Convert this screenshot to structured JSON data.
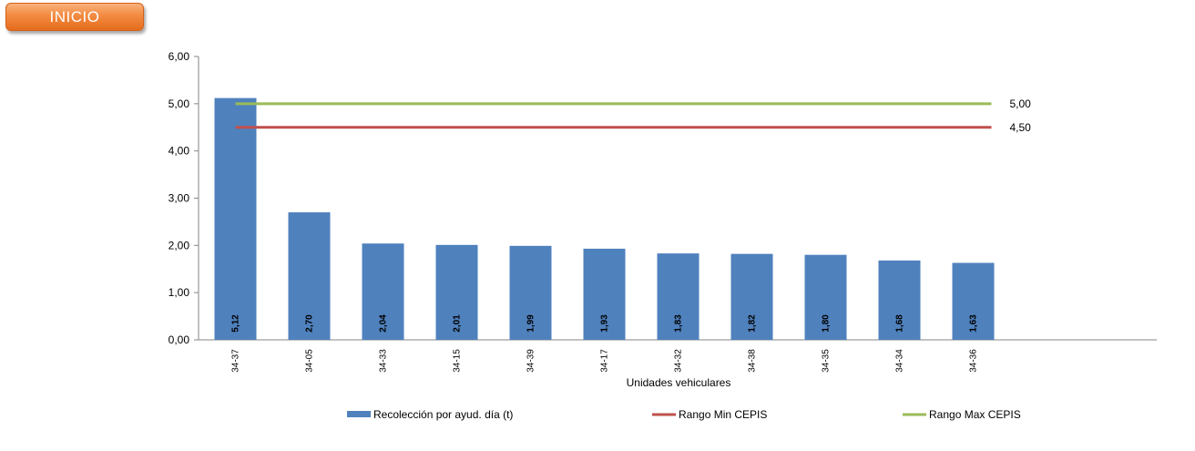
{
  "nav": {
    "inicio_label": "INICIO"
  },
  "chart_data": {
    "type": "bar",
    "title": "",
    "xlabel": "Unidades vehiculares",
    "ylabel": "",
    "ylim": [
      0,
      6
    ],
    "yticks": [
      0,
      1,
      2,
      3,
      4,
      5,
      6
    ],
    "ytick_labels": [
      "0,00",
      "1,00",
      "2,00",
      "3,00",
      "4,00",
      "5,00",
      "6,00"
    ],
    "grid": false,
    "legend_position": "bottom",
    "categories": [
      "34-37",
      "34-05",
      "34-33",
      "34-15",
      "34-39",
      "34-17",
      "34-32",
      "34-38",
      "34-35",
      "34-34",
      "34-36"
    ],
    "series": [
      {
        "name": "Recolección por ayud. día (t)",
        "type": "bar",
        "color": "#4f81bd",
        "values": [
          5.12,
          2.7,
          2.04,
          2.01,
          1.99,
          1.93,
          1.83,
          1.82,
          1.8,
          1.68,
          1.63
        ],
        "value_labels": [
          "5,12",
          "2,70",
          "2,04",
          "2,01",
          "1,99",
          "1,93",
          "1,83",
          "1,82",
          "1,80",
          "1,68",
          "1,63"
        ]
      },
      {
        "name": "Rango Min CEPIS",
        "type": "line",
        "color": "#c0504d",
        "value": 4.5,
        "value_label": "4,50"
      },
      {
        "name": "Rango Max CEPIS",
        "type": "line",
        "color": "#9bbb59",
        "value": 5.0,
        "value_label": "5,00"
      }
    ]
  }
}
